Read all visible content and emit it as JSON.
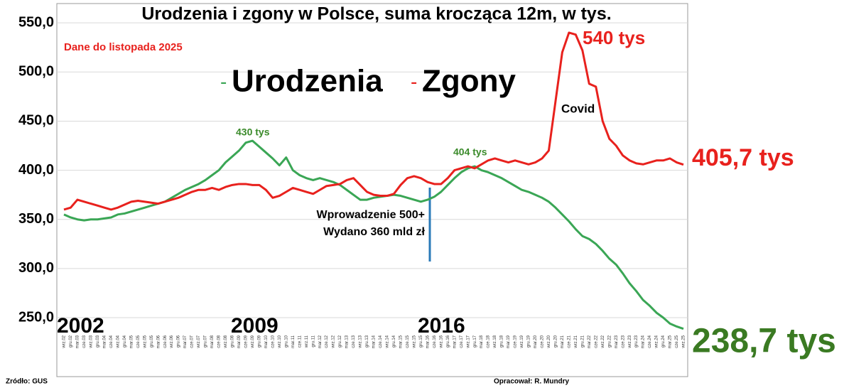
{
  "chart_data": {
    "type": "line",
    "title": "Urodzenia i zgony w Polsce, suma krocząca 12m, w tys.",
    "subtitle": "Dane do listopada 2025",
    "source": "Zródło: GUS",
    "author": "Opracował: R. Mundry",
    "annotations": {
      "births_peak": "430 tys",
      "births_2017": "404 tys",
      "deaths_peak": "540 tys",
      "deaths_last": "405,7 tys",
      "births_last": "238,7 tys",
      "covid": "Covid",
      "program_1": "Wprowadzenie 500+",
      "program_2": "Wydano 360 mld zł",
      "year_1": "2002",
      "year_2": "2009",
      "year_3": "2016"
    },
    "categories": [
      "wrz.02",
      "gru.02",
      "mar.03",
      "cze.03",
      "wrz.03",
      "gru.03",
      "mar.04",
      "cze.04",
      "wrz.04",
      "gru.04",
      "mar.05",
      "cze.05",
      "wrz.05",
      "gru.05",
      "mar.06",
      "cze.06",
      "wrz.06",
      "gru.06",
      "mar.07",
      "cze.07",
      "wrz.07",
      "gru.07",
      "mar.08",
      "cze.08",
      "wrz.08",
      "gru.08",
      "mar.09",
      "cze.09",
      "wrz.09",
      "gru.09",
      "mar.10",
      "cze.10",
      "wrz.10",
      "gru.10",
      "mar.11",
      "cze.11",
      "wrz.11",
      "gru.11",
      "mar.12",
      "cze.12",
      "wrz.12",
      "gru.12",
      "mar.13",
      "cze.13",
      "wrz.13",
      "gru.13",
      "mar.14",
      "cze.14",
      "wrz.14",
      "gru.14",
      "mar.15",
      "cze.15",
      "wrz.15",
      "gru.15",
      "mar.16",
      "cze.16",
      "wrz.16",
      "gru.16",
      "mar.17",
      "cze.17",
      "wrz.17",
      "gru.17",
      "mar.18",
      "cze.18",
      "wrz.18",
      "gru.18",
      "mar.19",
      "cze.19",
      "wrz.19",
      "gru.19",
      "mar.20",
      "cze.20",
      "wrz.20",
      "gru.20",
      "mar.21",
      "cze.21",
      "wrz.21",
      "gru.21",
      "mar.22",
      "cze.22",
      "wrz.22",
      "gru.22",
      "mar.23",
      "cze.23",
      "wrz.23",
      "gru.23",
      "mar.24",
      "cze.24",
      "wrz.24",
      "gru.24",
      "mar.25",
      "cze.25",
      "wrz.25"
    ],
    "series": [
      {
        "name": "Urodzenia",
        "color": "#3aa655",
        "values": [
          355,
          352,
          350,
          349,
          350,
          350,
          351,
          352,
          355,
          356,
          358,
          360,
          362,
          364,
          366,
          368,
          372,
          376,
          380,
          383,
          386,
          390,
          395,
          400,
          408,
          414,
          420,
          428,
          430,
          424,
          418,
          412,
          405,
          413,
          400,
          395,
          392,
          390,
          392,
          390,
          388,
          385,
          380,
          375,
          370,
          370,
          372,
          373,
          374,
          375,
          374,
          372,
          370,
          368,
          370,
          373,
          378,
          385,
          392,
          398,
          402,
          404,
          400,
          398,
          395,
          392,
          388,
          384,
          380,
          378,
          375,
          372,
          368,
          362,
          355,
          348,
          340,
          333,
          330,
          325,
          318,
          310,
          304,
          295,
          285,
          277,
          268,
          262,
          255,
          250,
          244,
          241,
          238.7
        ]
      },
      {
        "name": "Zgony",
        "color": "#e8211d",
        "values": [
          360,
          362,
          370,
          368,
          366,
          364,
          362,
          360,
          362,
          365,
          368,
          369,
          368,
          367,
          366,
          368,
          370,
          372,
          375,
          378,
          380,
          380,
          382,
          380,
          383,
          385,
          386,
          386,
          385,
          385,
          380,
          372,
          374,
          378,
          382,
          380,
          378,
          376,
          380,
          384,
          385,
          386,
          390,
          392,
          385,
          378,
          375,
          374,
          374,
          376,
          385,
          392,
          394,
          392,
          388,
          386,
          386,
          392,
          400,
          402,
          404,
          402,
          406,
          410,
          412,
          410,
          408,
          410,
          408,
          406,
          408,
          412,
          420,
          470,
          520,
          540,
          538,
          522,
          488,
          485,
          450,
          432,
          425,
          415,
          410,
          407,
          406,
          408,
          410,
          410,
          412,
          408,
          405.7
        ]
      }
    ],
    "ylim": [
      237,
      553
    ],
    "yticks": [
      {
        "value": 250,
        "label": "250,0"
      },
      {
        "value": 300,
        "label": "300,0"
      },
      {
        "value": 350,
        "label": "350,0"
      },
      {
        "value": 400,
        "label": "400,0"
      },
      {
        "value": 450,
        "label": "450,0"
      },
      {
        "value": 500,
        "label": "500,0"
      },
      {
        "value": 550,
        "label": "550,0"
      }
    ],
    "grid": true
  }
}
